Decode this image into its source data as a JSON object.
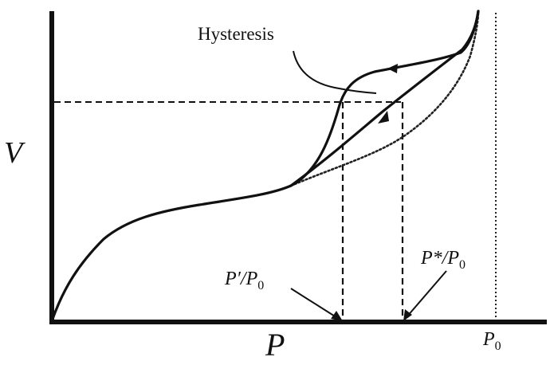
{
  "diagram": {
    "labels": {
      "hysteresis": "Hysteresis",
      "y_axis": "V",
      "x_axis": "P",
      "p_prime": {
        "main": "P′",
        "slash": "/",
        "denom": "P",
        "sub": "0"
      },
      "p_star": {
        "main": "P*",
        "slash": "/",
        "denom": "P",
        "sub": "0"
      },
      "p_zero": {
        "main": "P",
        "sub": "0"
      }
    },
    "curves": [
      {
        "id": "adsorption",
        "style": "solid",
        "arrow": "up"
      },
      {
        "id": "desorption",
        "style": "solid",
        "arrow": "down"
      },
      {
        "id": "ideal-isotherm",
        "style": "dotted"
      }
    ],
    "reference_lines": [
      {
        "id": "saturation-pressure",
        "style": "dotted",
        "label_ref": "p_zero"
      },
      {
        "id": "equal-uptake",
        "style": "dashed"
      },
      {
        "id": "p-prime-drop",
        "style": "dashed",
        "label_ref": "p_prime"
      },
      {
        "id": "p-star-drop",
        "style": "dashed",
        "label_ref": "p_star"
      }
    ],
    "colors": {
      "ink": "#111111",
      "background": "#ffffff"
    }
  }
}
